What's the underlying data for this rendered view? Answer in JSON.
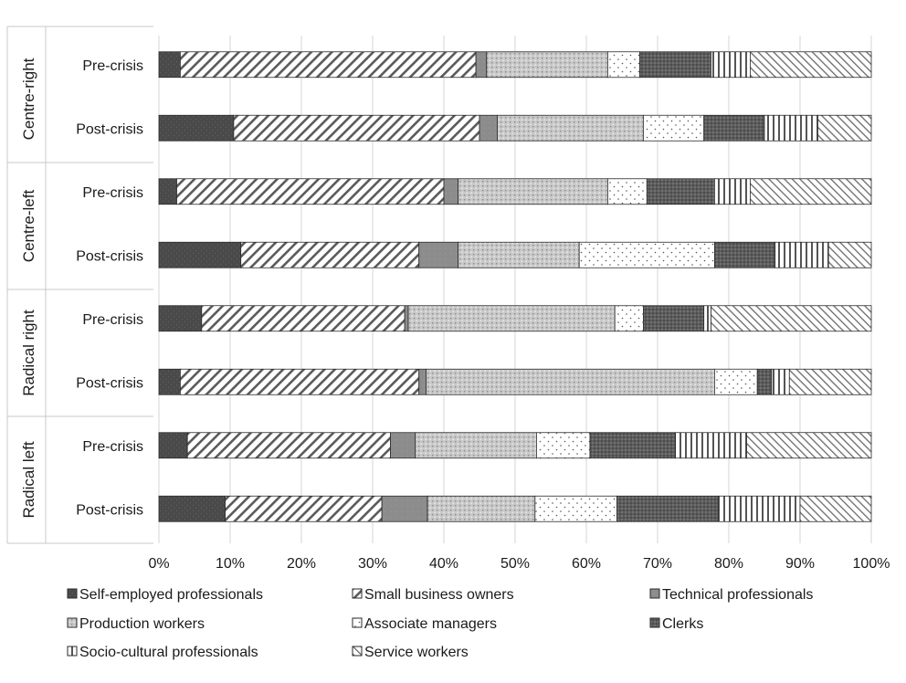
{
  "chart_data": {
    "type": "bar",
    "orientation": "horizontal",
    "stacked": "percent",
    "groups": [
      {
        "name": "Centre-right",
        "rows": [
          "Pre-crisis",
          "Post-crisis"
        ]
      },
      {
        "name": "Centre-left",
        "rows": [
          "Pre-crisis",
          "Post-crisis"
        ]
      },
      {
        "name": "Radical right",
        "rows": [
          "Pre-crisis",
          "Post-crisis"
        ]
      },
      {
        "name": "Radical left",
        "rows": [
          "Pre-crisis",
          "Post-crisis"
        ]
      }
    ],
    "categories": [
      "Centre-right Pre-crisis",
      "Centre-right Post-crisis",
      "Centre-left Pre-crisis",
      "Centre-left Post-crisis",
      "Radical right Pre-crisis",
      "Radical right Post-crisis",
      "Radical left Pre-crisis",
      "Radical left Post-crisis"
    ],
    "series": [
      {
        "name": "Self-employed professionals",
        "pattern": "solid-dark",
        "values": [
          3.0,
          10.5,
          2.5,
          11.5,
          6.0,
          3.0,
          4.0,
          9.3
        ]
      },
      {
        "name": "Small business owners",
        "pattern": "diagonal-forward",
        "values": [
          41.5,
          34.5,
          37.5,
          25.0,
          28.5,
          33.5,
          28.5,
          22.0
        ]
      },
      {
        "name": "Technical professionals",
        "pattern": "solid-mid",
        "values": [
          1.5,
          2.5,
          2.0,
          5.5,
          0.5,
          1.0,
          3.5,
          6.4
        ]
      },
      {
        "name": "Production workers",
        "pattern": "fine-dots",
        "values": [
          17.0,
          20.5,
          21.0,
          17.0,
          29.0,
          40.5,
          17.0,
          15.1
        ]
      },
      {
        "name": "Associate managers",
        "pattern": "sparse-dots",
        "values": [
          4.5,
          8.5,
          5.5,
          19.0,
          4.0,
          6.0,
          7.5,
          11.5
        ]
      },
      {
        "name": "Clerks",
        "pattern": "dense-dark",
        "values": [
          10.0,
          8.5,
          9.5,
          8.5,
          8.5,
          2.0,
          12.0,
          14.2
        ]
      },
      {
        "name": "Socio-cultural professionals",
        "pattern": "vertical-lines",
        "values": [
          5.5,
          7.5,
          5.0,
          7.5,
          1.0,
          2.5,
          10.0,
          11.5
        ]
      },
      {
        "name": "Service workers",
        "pattern": "diagonal-back",
        "values": [
          17.0,
          7.5,
          17.0,
          6.0,
          22.5,
          11.5,
          17.5,
          10.0
        ]
      }
    ],
    "xlim": [
      0,
      100
    ],
    "xticks": [
      "0%",
      "10%",
      "20%",
      "30%",
      "40%",
      "50%",
      "60%",
      "70%",
      "80%",
      "90%",
      "100%"
    ],
    "grid": "vertical",
    "legend_position": "bottom",
    "title": "",
    "xlabel": "",
    "ylabel": ""
  }
}
